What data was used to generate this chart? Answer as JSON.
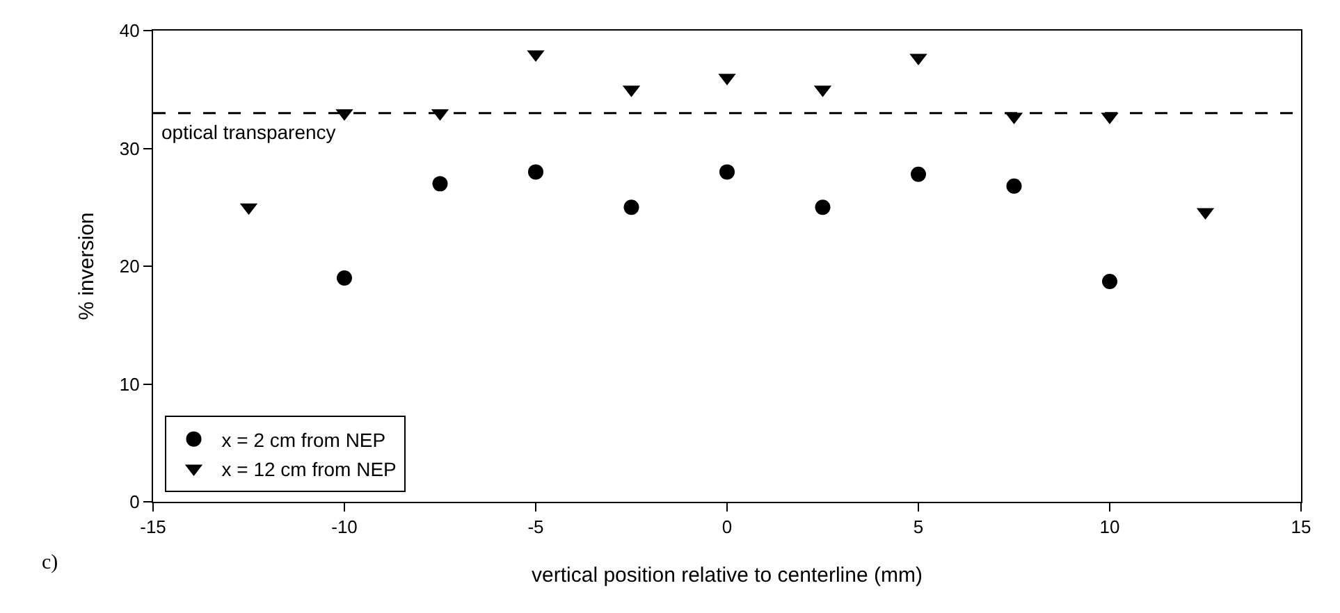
{
  "chart_data": {
    "type": "scatter",
    "xlabel": "vertical position relative to centerline (mm)",
    "ylabel": "% inversion",
    "xlim": [
      -15,
      15
    ],
    "xticks": [
      -15,
      -10,
      -5,
      0,
      5,
      10,
      15
    ],
    "ylim": [
      0,
      40
    ],
    "yticks": [
      0,
      10,
      20,
      30,
      40
    ],
    "grid": false,
    "legend": "bottom left",
    "series": [
      {
        "name": "x = 2 cm from NEP",
        "color": "#000000",
        "marker": "circle",
        "x": [
          -10,
          -7.5,
          -5,
          -2.5,
          0,
          2.5,
          5,
          7.5,
          10
        ],
        "values": [
          19,
          27,
          28,
          25,
          28,
          25,
          27.8,
          26.8,
          18.7
        ]
      },
      {
        "name": "x = 12 cm from NEP",
        "color": "#000000",
        "marker": "triangle",
        "x": [
          -12.5,
          -10,
          -7.5,
          -5,
          -2.5,
          0,
          2.5,
          5,
          7.5,
          10,
          12.5
        ],
        "values": [
          25,
          33,
          33,
          38,
          35,
          36,
          35,
          37.7,
          32.7,
          32.7,
          24.6
        ]
      }
    ],
    "ref_lines": [
      {
        "axis": "y",
        "value": 33,
        "label": "optical transparency",
        "color": "#000000",
        "line_style": "dashed"
      }
    ],
    "annotations": [
      "c)"
    ]
  }
}
